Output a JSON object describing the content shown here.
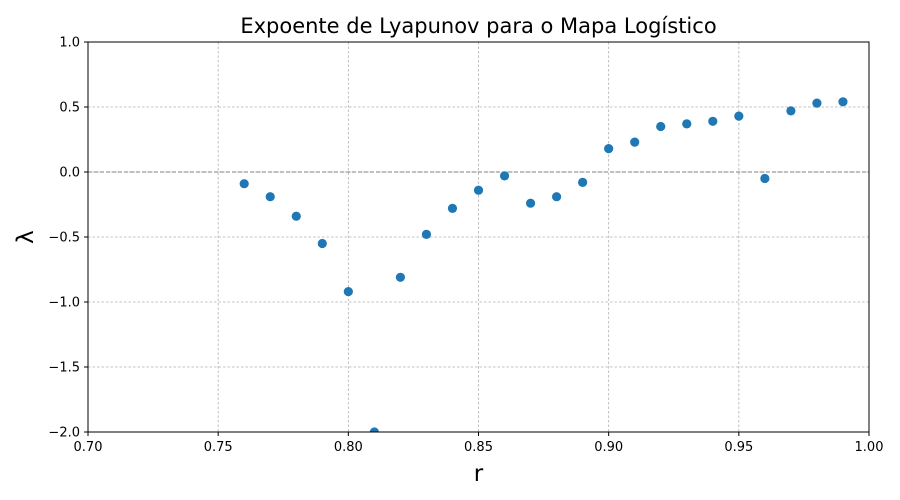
{
  "chart_data": {
    "type": "scatter",
    "title": "Expoente de Lyapunov para o Mapa Logístico",
    "xlabel": "r",
    "ylabel": "λ",
    "xlim": [
      0.7,
      1.0
    ],
    "ylim": [
      -2.0,
      1.0
    ],
    "x_ticks": [
      "0.70",
      "0.75",
      "0.80",
      "0.85",
      "0.90",
      "0.95",
      "1.00"
    ],
    "y_ticks": [
      "1.0",
      "0.5",
      "0.0",
      "−0.5",
      "−1.0",
      "−1.5",
      "−2.0"
    ],
    "grid": true,
    "reference_line": {
      "y": 0.0,
      "style": "dashed",
      "color": "#808080"
    },
    "marker_color": "#1f77b4",
    "points": [
      {
        "x": 0.76,
        "y": -0.09
      },
      {
        "x": 0.77,
        "y": -0.19
      },
      {
        "x": 0.78,
        "y": -0.34
      },
      {
        "x": 0.79,
        "y": -0.55
      },
      {
        "x": 0.8,
        "y": -0.92
      },
      {
        "x": 0.81,
        "y": -2.0
      },
      {
        "x": 0.82,
        "y": -0.81
      },
      {
        "x": 0.83,
        "y": -0.48
      },
      {
        "x": 0.84,
        "y": -0.28
      },
      {
        "x": 0.85,
        "y": -0.14
      },
      {
        "x": 0.86,
        "y": -0.03
      },
      {
        "x": 0.87,
        "y": -0.24
      },
      {
        "x": 0.88,
        "y": -0.19
      },
      {
        "x": 0.89,
        "y": -0.08
      },
      {
        "x": 0.9,
        "y": 0.18
      },
      {
        "x": 0.91,
        "y": 0.23
      },
      {
        "x": 0.92,
        "y": 0.35
      },
      {
        "x": 0.93,
        "y": 0.37
      },
      {
        "x": 0.94,
        "y": 0.39
      },
      {
        "x": 0.95,
        "y": 0.43
      },
      {
        "x": 0.96,
        "y": -0.05
      },
      {
        "x": 0.97,
        "y": 0.47
      },
      {
        "x": 0.98,
        "y": 0.53
      },
      {
        "x": 0.99,
        "y": 0.54
      }
    ]
  }
}
